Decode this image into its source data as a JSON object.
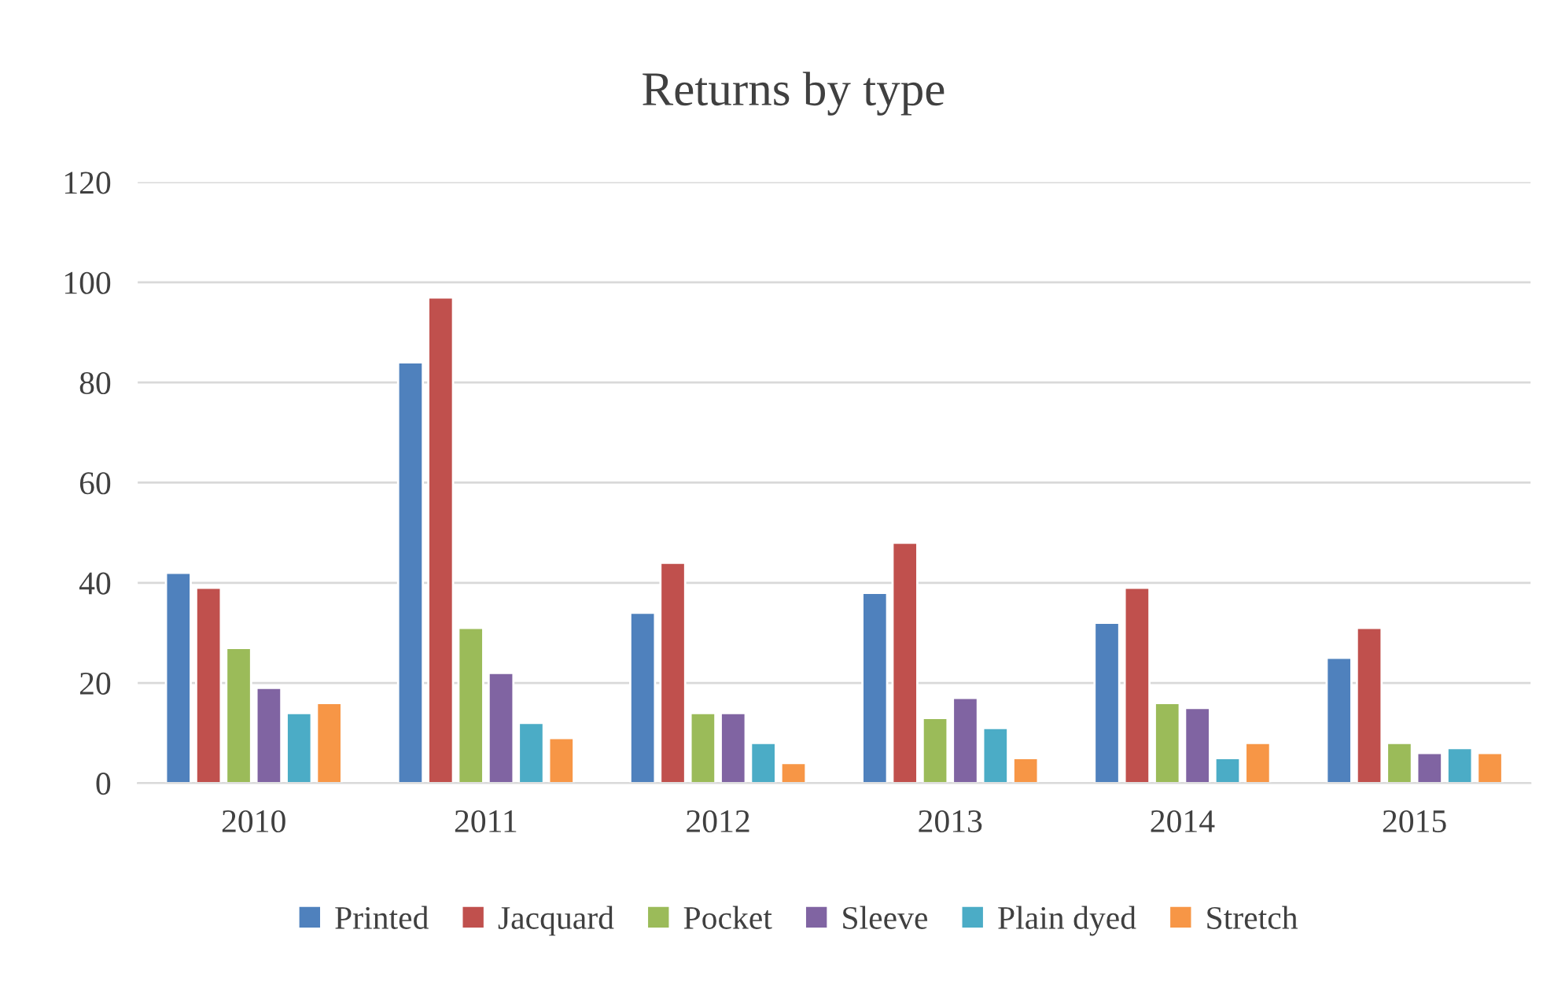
{
  "chart_data": {
    "type": "bar",
    "title": "Returns by type",
    "categories": [
      "2010",
      "2011",
      "2012",
      "2013",
      "2014",
      "2015"
    ],
    "series": [
      {
        "name": "Printed",
        "color": "#4f81bd",
        "values": [
          42,
          84,
          34,
          38,
          32,
          25
        ]
      },
      {
        "name": "Jacquard",
        "color": "#c0504d",
        "values": [
          39,
          97,
          44,
          48,
          39,
          31
        ]
      },
      {
        "name": "Pocket",
        "color": "#9bbb59",
        "values": [
          27,
          31,
          14,
          13,
          16,
          8
        ]
      },
      {
        "name": "Sleeve",
        "color": "#8064a2",
        "values": [
          19,
          22,
          14,
          17,
          15,
          6
        ]
      },
      {
        "name": "Plain dyed",
        "color": "#4bacc6",
        "values": [
          14,
          12,
          8,
          11,
          5,
          7
        ]
      },
      {
        "name": "Stretch",
        "color": "#f79646",
        "values": [
          16,
          9,
          4,
          5,
          8,
          6
        ]
      }
    ],
    "ylim": [
      0,
      120
    ],
    "yticks": [
      0,
      20,
      40,
      60,
      80,
      100,
      120
    ],
    "grid": "y",
    "legend": "bottom"
  }
}
